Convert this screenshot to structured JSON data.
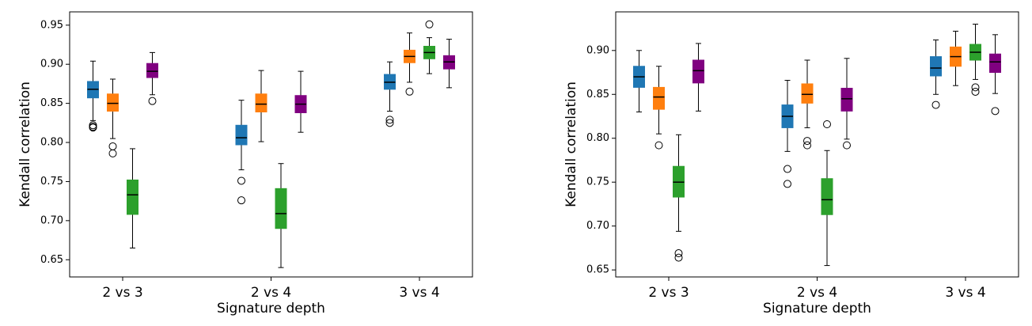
{
  "chart_data": [
    {
      "type": "box",
      "ylabel": "Kendall correlation",
      "xlabel": "Signature depth",
      "categories": [
        "2 vs 3",
        "2 vs 4",
        "3 vs 4"
      ],
      "ylim": [
        0.628,
        0.967
      ],
      "yticks": [
        0.65,
        {
          "value": 0.7,
          "label": "0.70"
        },
        0.75,
        {
          "value": 0.8,
          "label": "0.80"
        },
        0.85,
        {
          "value": 0.9,
          "label": "0.90"
        },
        0.95
      ],
      "series": [
        {
          "color": "#1f77b4",
          "values": [
            {
              "whislo": 0.828,
              "q1": 0.857,
              "med": 0.868,
              "q3": 0.878,
              "whishi": 0.904,
              "fliers": [
                0.822,
                0.82,
                0.819
              ]
            },
            {
              "whislo": 0.765,
              "q1": 0.797,
              "med": 0.806,
              "q3": 0.822,
              "whishi": 0.854,
              "fliers": [
                0.751,
                0.726
              ]
            },
            {
              "whislo": 0.84,
              "q1": 0.868,
              "med": 0.877,
              "q3": 0.887,
              "whishi": 0.903,
              "fliers": [
                0.829,
                0.825
              ]
            }
          ]
        },
        {
          "color": "#ff7f0e",
          "values": [
            {
              "whislo": 0.805,
              "q1": 0.84,
              "med": 0.85,
              "q3": 0.862,
              "whishi": 0.881,
              "fliers": [
                0.795,
                0.786
              ]
            },
            {
              "whislo": 0.801,
              "q1": 0.839,
              "med": 0.849,
              "q3": 0.862,
              "whishi": 0.892,
              "fliers": []
            },
            {
              "whislo": 0.877,
              "q1": 0.902,
              "med": 0.91,
              "q3": 0.918,
              "whishi": 0.94,
              "fliers": [
                0.865
              ]
            }
          ]
        },
        {
          "color": "#2ca02c",
          "values": [
            {
              "whislo": 0.665,
              "q1": 0.708,
              "med": 0.733,
              "q3": 0.752,
              "whishi": 0.792,
              "fliers": []
            },
            {
              "whislo": 0.64,
              "q1": 0.69,
              "med": 0.709,
              "q3": 0.741,
              "whishi": 0.773,
              "fliers": []
            },
            {
              "whislo": 0.888,
              "q1": 0.907,
              "med": 0.915,
              "q3": 0.923,
              "whishi": 0.934,
              "fliers": [
                0.951
              ]
            }
          ]
        },
        {
          "color": "#800080",
          "values": [
            {
              "whislo": 0.861,
              "q1": 0.883,
              "med": 0.891,
              "q3": 0.901,
              "whishi": 0.915,
              "fliers": [
                0.853
              ]
            },
            {
              "whislo": 0.813,
              "q1": 0.838,
              "med": 0.849,
              "q3": 0.86,
              "whishi": 0.891,
              "fliers": []
            },
            {
              "whislo": 0.87,
              "q1": 0.894,
              "med": 0.903,
              "q3": 0.911,
              "whishi": 0.932,
              "fliers": []
            }
          ]
        }
      ]
    },
    {
      "type": "box",
      "ylabel": "Kendall correlation",
      "xlabel": "Signature depth",
      "categories": [
        "2 vs 3",
        "2 vs 4",
        "3 vs 4"
      ],
      "ylim": [
        0.642,
        0.944
      ],
      "yticks": [
        0.65,
        {
          "value": 0.7,
          "label": "0.70"
        },
        0.75,
        {
          "value": 0.8,
          "label": "0.80"
        },
        0.85,
        {
          "value": 0.9,
          "label": "0.90"
        }
      ],
      "series": [
        {
          "color": "#1f77b4",
          "values": [
            {
              "whislo": 0.83,
              "q1": 0.858,
              "med": 0.87,
              "q3": 0.882,
              "whishi": 0.9,
              "fliers": []
            },
            {
              "whislo": 0.785,
              "q1": 0.812,
              "med": 0.825,
              "q3": 0.838,
              "whishi": 0.866,
              "fliers": [
                0.765,
                0.748
              ]
            },
            {
              "whislo": 0.85,
              "q1": 0.871,
              "med": 0.88,
              "q3": 0.893,
              "whishi": 0.912,
              "fliers": [
                0.838
              ]
            }
          ]
        },
        {
          "color": "#ff7f0e",
          "values": [
            {
              "whislo": 0.805,
              "q1": 0.833,
              "med": 0.847,
              "q3": 0.858,
              "whishi": 0.882,
              "fliers": [
                0.792
              ]
            },
            {
              "whislo": 0.812,
              "q1": 0.84,
              "med": 0.85,
              "q3": 0.862,
              "whishi": 0.889,
              "fliers": [
                0.797,
                0.792
              ]
            },
            {
              "whislo": 0.86,
              "q1": 0.882,
              "med": 0.893,
              "q3": 0.904,
              "whishi": 0.922,
              "fliers": []
            }
          ]
        },
        {
          "color": "#2ca02c",
          "values": [
            {
              "whislo": 0.694,
              "q1": 0.733,
              "med": 0.75,
              "q3": 0.768,
              "whishi": 0.804,
              "fliers": [
                0.669,
                0.664
              ]
            },
            {
              "whislo": 0.655,
              "q1": 0.713,
              "med": 0.73,
              "q3": 0.754,
              "whishi": 0.786,
              "fliers": [
                0.816
              ]
            },
            {
              "whislo": 0.867,
              "q1": 0.889,
              "med": 0.898,
              "q3": 0.907,
              "whishi": 0.93,
              "fliers": [
                0.858,
                0.853
              ]
            }
          ]
        },
        {
          "color": "#800080",
          "values": [
            {
              "whislo": 0.831,
              "q1": 0.863,
              "med": 0.877,
              "q3": 0.889,
              "whishi": 0.908,
              "fliers": []
            },
            {
              "whislo": 0.799,
              "q1": 0.831,
              "med": 0.845,
              "q3": 0.857,
              "whishi": 0.891,
              "fliers": [
                0.792
              ]
            },
            {
              "whislo": 0.851,
              "q1": 0.875,
              "med": 0.887,
              "q3": 0.896,
              "whishi": 0.918,
              "fliers": [
                0.831
              ]
            }
          ]
        }
      ]
    }
  ]
}
